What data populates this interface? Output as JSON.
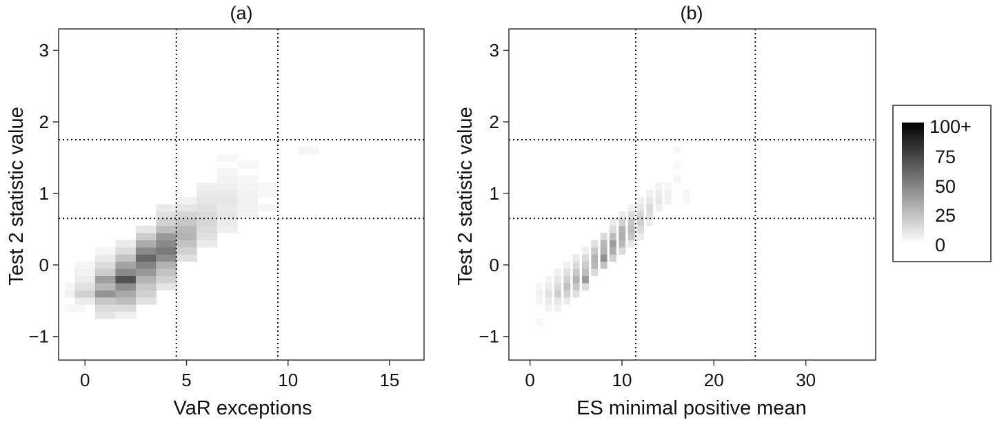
{
  "chart_data": [
    {
      "type": "heatmap",
      "title": "(a)",
      "xlabel": "VaR exceptions",
      "ylabel": "Test 2 statistic value",
      "xlim": [
        -1.3,
        16.7
      ],
      "ylim": [
        -1.33,
        3.3
      ],
      "xticks": [
        0,
        5,
        10,
        15
      ],
      "yticks": [
        -1,
        0,
        1,
        2,
        3
      ],
      "xtick_labels": [
        "0",
        "5",
        "10",
        "15"
      ],
      "ytick_labels": [
        "−1",
        "0",
        "1",
        "2",
        "3"
      ],
      "vlines": [
        4.5,
        9.5
      ],
      "hlines": [
        0.65,
        1.75
      ],
      "bin_width": 1,
      "bin_height": 0.1,
      "cells": [
        [
          -0.5,
          -0.6,
          3
        ],
        [
          -0.5,
          -0.4,
          6
        ],
        [
          -0.5,
          -0.3,
          4
        ],
        [
          0,
          -0.5,
          8
        ],
        [
          0,
          -0.4,
          18
        ],
        [
          0,
          -0.3,
          12
        ],
        [
          0,
          -0.2,
          8
        ],
        [
          0,
          -0.1,
          6
        ],
        [
          0,
          0,
          4
        ],
        [
          1,
          -0.7,
          10
        ],
        [
          1,
          -0.6,
          14
        ],
        [
          1,
          -0.5,
          22
        ],
        [
          1,
          -0.4,
          42
        ],
        [
          1,
          -0.3,
          28
        ],
        [
          1,
          -0.2,
          38
        ],
        [
          1,
          -0.1,
          20
        ],
        [
          1,
          0,
          14
        ],
        [
          1,
          0.1,
          8
        ],
        [
          1,
          0.2,
          4
        ],
        [
          2,
          -0.7,
          6
        ],
        [
          2,
          -0.6,
          14
        ],
        [
          2,
          -0.5,
          26
        ],
        [
          2,
          -0.4,
          34
        ],
        [
          2,
          -0.3,
          44
        ],
        [
          2,
          -0.2,
          68
        ],
        [
          2,
          -0.1,
          46
        ],
        [
          2,
          0,
          36
        ],
        [
          2,
          0.1,
          24
        ],
        [
          2,
          0.2,
          14
        ],
        [
          2,
          0.3,
          8
        ],
        [
          3,
          -0.5,
          12
        ],
        [
          3,
          -0.4,
          18
        ],
        [
          3,
          -0.3,
          22
        ],
        [
          3,
          -0.2,
          30
        ],
        [
          3,
          -0.1,
          40
        ],
        [
          3,
          0,
          48
        ],
        [
          3,
          0.1,
          60
        ],
        [
          3,
          0.2,
          46
        ],
        [
          3,
          0.3,
          32
        ],
        [
          3,
          0.4,
          20
        ],
        [
          3,
          0.5,
          10
        ],
        [
          4,
          -0.3,
          10
        ],
        [
          4,
          -0.2,
          18
        ],
        [
          4,
          -0.1,
          24
        ],
        [
          4,
          0,
          30
        ],
        [
          4,
          0.1,
          44
        ],
        [
          4,
          0.2,
          52
        ],
        [
          4,
          0.3,
          46
        ],
        [
          4,
          0.4,
          40
        ],
        [
          4,
          0.5,
          26
        ],
        [
          4,
          0.6,
          18
        ],
        [
          4,
          0.7,
          12
        ],
        [
          4,
          0.8,
          8
        ],
        [
          5,
          0.1,
          12
        ],
        [
          5,
          0.2,
          18
        ],
        [
          5,
          0.3,
          24
        ],
        [
          5,
          0.4,
          30
        ],
        [
          5,
          0.5,
          28
        ],
        [
          5,
          0.6,
          22
        ],
        [
          5,
          0.7,
          16
        ],
        [
          5,
          0.8,
          10
        ],
        [
          5,
          0.9,
          6
        ],
        [
          6,
          0.3,
          8
        ],
        [
          6,
          0.4,
          12
        ],
        [
          6,
          0.5,
          14
        ],
        [
          6,
          0.6,
          16
        ],
        [
          6,
          0.7,
          14
        ],
        [
          6,
          0.8,
          12
        ],
        [
          6,
          0.9,
          10
        ],
        [
          6,
          1.0,
          8
        ],
        [
          6,
          1.1,
          6
        ],
        [
          7,
          0.5,
          6
        ],
        [
          7,
          0.6,
          8
        ],
        [
          7,
          0.7,
          10
        ],
        [
          7,
          0.8,
          8
        ],
        [
          7,
          0.9,
          10
        ],
        [
          7,
          1.0,
          8
        ],
        [
          7,
          1.1,
          6
        ],
        [
          7,
          1.2,
          5
        ],
        [
          7,
          1.3,
          4
        ],
        [
          7,
          1.5,
          3
        ],
        [
          8,
          0.7,
          5
        ],
        [
          8,
          0.8,
          6
        ],
        [
          8,
          0.9,
          6
        ],
        [
          8,
          1.0,
          5
        ],
        [
          8,
          1.1,
          4
        ],
        [
          8,
          1.2,
          3
        ],
        [
          8,
          1.4,
          3
        ],
        [
          9,
          0.8,
          3
        ],
        [
          9,
          1.0,
          3
        ],
        [
          9,
          1.1,
          3
        ],
        [
          11,
          1.6,
          4
        ]
      ]
    },
    {
      "type": "heatmap",
      "title": "(b)",
      "xlabel": "ES minimal positive mean",
      "ylabel": "Test 2 statistic value",
      "xlim": [
        -2.3,
        37.6
      ],
      "ylim": [
        -1.33,
        3.3
      ],
      "xticks": [
        0,
        10,
        20,
        30
      ],
      "yticks": [
        -1,
        0,
        1,
        2,
        3
      ],
      "xtick_labels": [
        "0",
        "10",
        "20",
        "30"
      ],
      "ytick_labels": [
        "−1",
        "0",
        "1",
        "2",
        "3"
      ],
      "vlines": [
        11.5,
        24.5
      ],
      "hlines": [
        0.65,
        1.75
      ],
      "bin_width": 0.7,
      "bin_height": 0.1,
      "cells": [
        [
          1,
          -0.8,
          3
        ],
        [
          1,
          -0.5,
          4
        ],
        [
          1,
          -0.4,
          6
        ],
        [
          1,
          -0.3,
          4
        ],
        [
          2,
          -0.6,
          5
        ],
        [
          2,
          -0.5,
          8
        ],
        [
          2,
          -0.4,
          12
        ],
        [
          2,
          -0.3,
          8
        ],
        [
          2,
          -0.2,
          5
        ],
        [
          3,
          -0.6,
          6
        ],
        [
          3,
          -0.5,
          10
        ],
        [
          3,
          -0.4,
          20
        ],
        [
          3,
          -0.3,
          14
        ],
        [
          3,
          -0.2,
          10
        ],
        [
          3,
          -0.1,
          6
        ],
        [
          4,
          -0.5,
          8
        ],
        [
          4,
          -0.4,
          18
        ],
        [
          4,
          -0.3,
          24
        ],
        [
          4,
          -0.2,
          18
        ],
        [
          4,
          -0.1,
          12
        ],
        [
          4,
          0,
          6
        ],
        [
          5,
          -0.4,
          12
        ],
        [
          5,
          -0.3,
          22
        ],
        [
          5,
          -0.2,
          30
        ],
        [
          5,
          -0.1,
          22
        ],
        [
          5,
          0,
          14
        ],
        [
          5,
          0.1,
          8
        ],
        [
          6,
          -0.3,
          14
        ],
        [
          6,
          -0.2,
          40
        ],
        [
          6,
          -0.1,
          26
        ],
        [
          6,
          0,
          20
        ],
        [
          6,
          0.1,
          14
        ],
        [
          6,
          0.2,
          6
        ],
        [
          7,
          -0.1,
          14
        ],
        [
          7,
          0,
          28
        ],
        [
          7,
          0.1,
          30
        ],
        [
          7,
          0.2,
          22
        ],
        [
          7,
          0.3,
          12
        ],
        [
          8,
          0,
          24
        ],
        [
          8,
          0.1,
          44
        ],
        [
          8,
          0.2,
          30
        ],
        [
          8,
          0.3,
          28
        ],
        [
          8,
          0.4,
          14
        ],
        [
          9,
          0.1,
          18
        ],
        [
          9,
          0.2,
          32
        ],
        [
          9,
          0.3,
          38
        ],
        [
          9,
          0.4,
          26
        ],
        [
          9,
          0.5,
          14
        ],
        [
          9,
          0.6,
          8
        ],
        [
          10,
          0.2,
          14
        ],
        [
          10,
          0.3,
          28
        ],
        [
          10,
          0.4,
          32
        ],
        [
          10,
          0.5,
          30
        ],
        [
          10,
          0.6,
          18
        ],
        [
          10,
          0.7,
          8
        ],
        [
          11,
          0.3,
          10
        ],
        [
          11,
          0.4,
          22
        ],
        [
          11,
          0.5,
          26
        ],
        [
          11,
          0.6,
          22
        ],
        [
          11,
          0.7,
          14
        ],
        [
          11,
          0.8,
          6
        ],
        [
          12,
          0.4,
          8
        ],
        [
          12,
          0.5,
          14
        ],
        [
          12,
          0.6,
          18
        ],
        [
          12,
          0.7,
          16
        ],
        [
          12,
          0.8,
          10
        ],
        [
          12,
          0.9,
          6
        ],
        [
          13,
          0.6,
          8
        ],
        [
          13,
          0.7,
          12
        ],
        [
          13,
          0.8,
          14
        ],
        [
          13,
          0.9,
          10
        ],
        [
          13,
          1.0,
          6
        ],
        [
          14,
          0.8,
          6
        ],
        [
          14,
          0.9,
          10
        ],
        [
          14,
          1.0,
          8
        ],
        [
          14,
          1.1,
          5
        ],
        [
          15,
          0.9,
          5
        ],
        [
          15,
          1.0,
          6
        ],
        [
          15,
          1.1,
          4
        ],
        [
          16,
          1.2,
          4
        ],
        [
          16,
          1.4,
          3
        ],
        [
          16,
          1.6,
          3
        ],
        [
          17,
          1.0,
          3
        ],
        [
          17,
          0.9,
          3
        ]
      ]
    }
  ],
  "legend": {
    "labels": [
      "100+",
      "75",
      "50",
      "25",
      "0"
    ],
    "color_max": "#000000",
    "color_min": "#ffffff",
    "max_value": 100
  }
}
